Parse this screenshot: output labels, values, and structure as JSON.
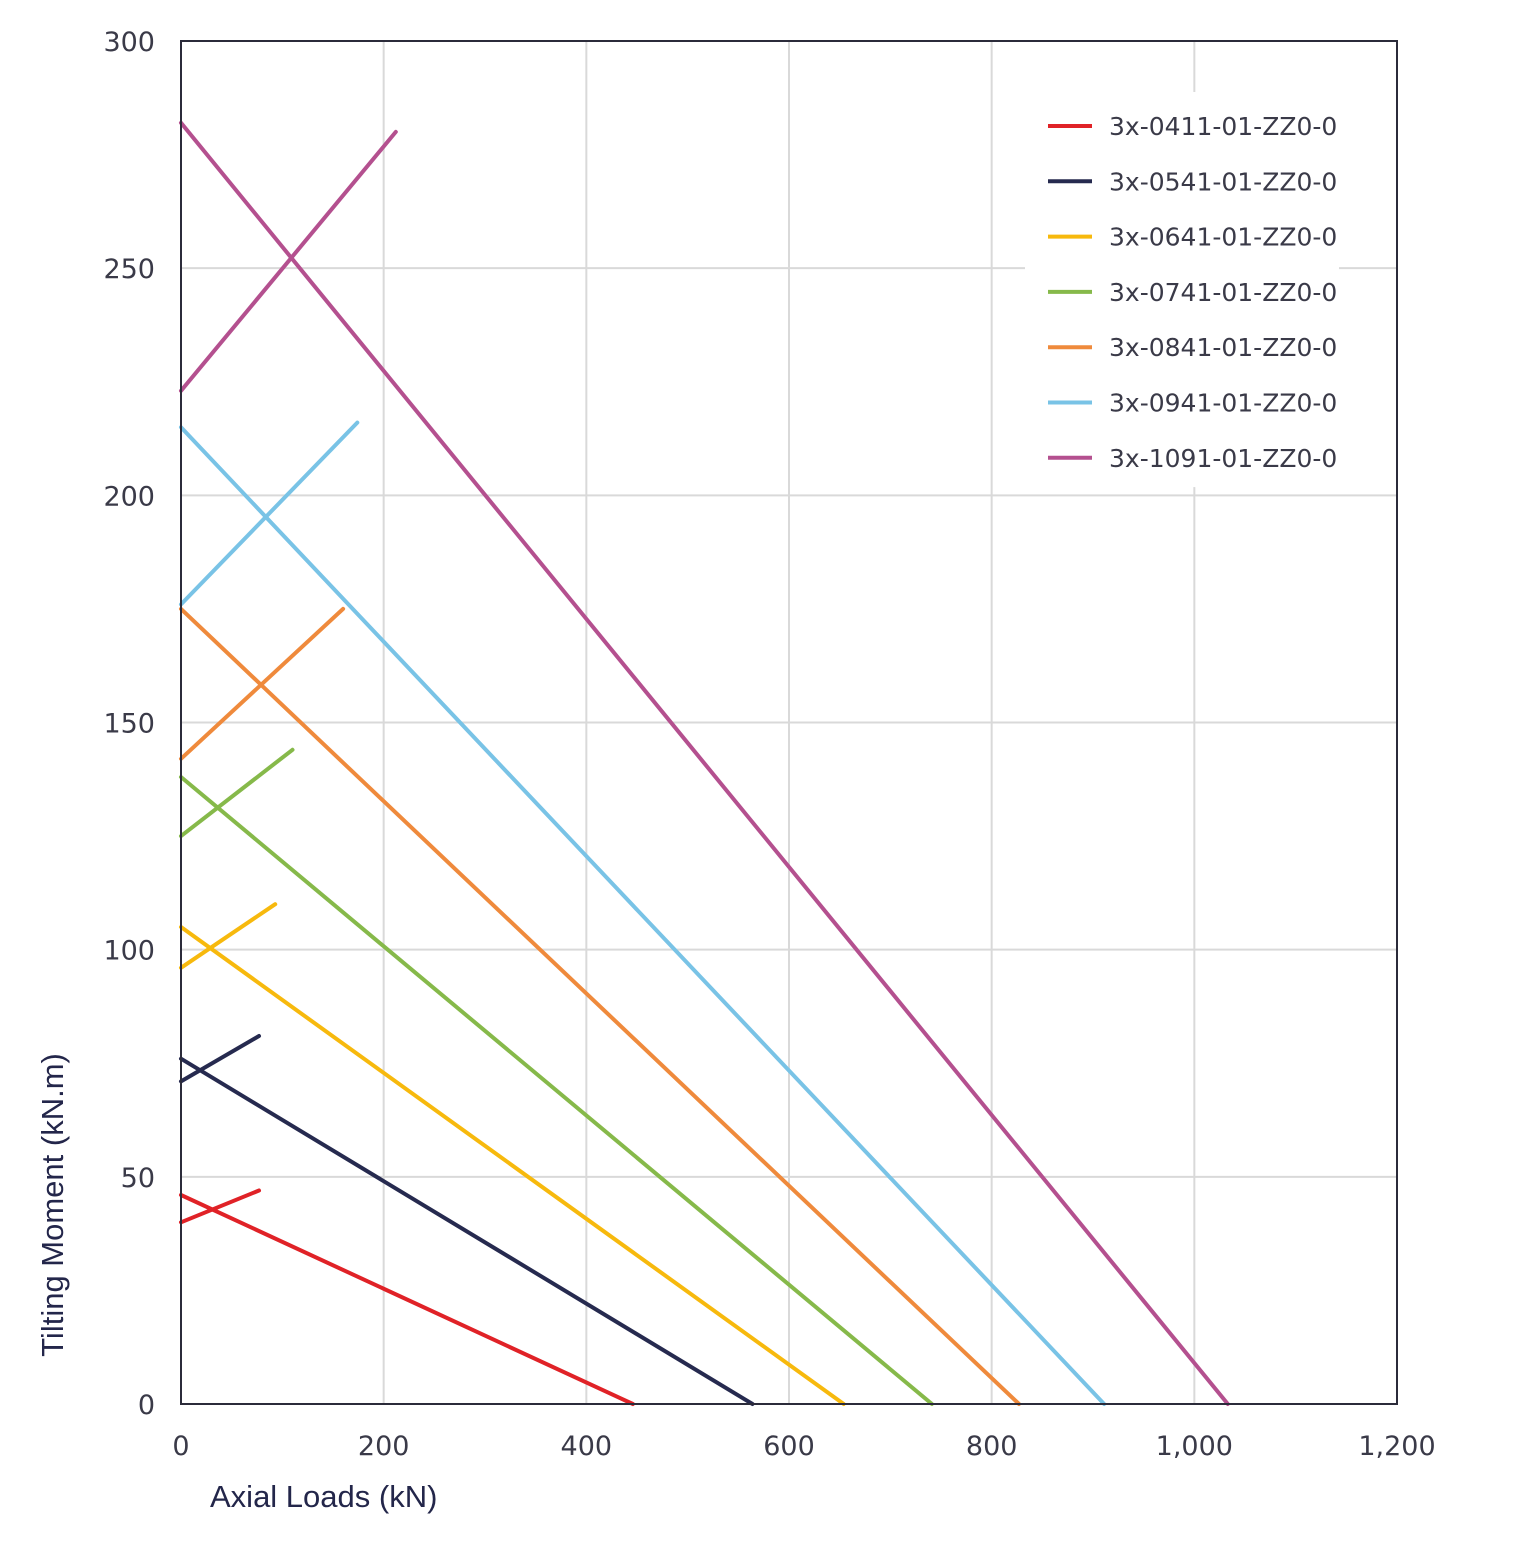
{
  "chart_data": {
    "type": "line",
    "title": "",
    "xlabel": "Axial Loads (kN)",
    "ylabel": "Tilting Moment (kN.m)",
    "xlim": [
      0,
      1200
    ],
    "ylim": [
      0,
      300
    ],
    "x_ticks": [
      0,
      200,
      400,
      600,
      800,
      1000,
      1200
    ],
    "x_tick_labels": [
      "0",
      "200",
      "400",
      "600",
      "800",
      "1,000",
      "1,200"
    ],
    "y_ticks": [
      0,
      50,
      100,
      150,
      200,
      250,
      300
    ],
    "y_tick_labels": [
      "0",
      "50",
      "100",
      "150",
      "200",
      "250",
      "300"
    ],
    "grid": true,
    "legend_position": "top-right",
    "series": [
      {
        "name": "3x-0411-01-ZZ0-0",
        "color": "#e02227",
        "segments": [
          [
            [
              0,
              46
            ],
            [
              446,
              0
            ]
          ],
          [
            [
              0,
              40
            ],
            [
              77,
              47
            ]
          ]
        ]
      },
      {
        "name": "3x-0541-01-ZZ0-0",
        "color": "#262a4f",
        "segments": [
          [
            [
              0,
              76
            ],
            [
              564,
              0
            ]
          ],
          [
            [
              0,
              71
            ],
            [
              77,
              81
            ]
          ]
        ]
      },
      {
        "name": "3x-0641-01-ZZ0-0",
        "color": "#f7b90d",
        "segments": [
          [
            [
              0,
              105
            ],
            [
              654,
              0
            ]
          ],
          [
            [
              0,
              96
            ],
            [
              93,
              110
            ]
          ]
        ]
      },
      {
        "name": "3x-0741-01-ZZ0-0",
        "color": "#86b94a",
        "segments": [
          [
            [
              0,
              138
            ],
            [
              741,
              0
            ]
          ],
          [
            [
              0,
              125
            ],
            [
              110,
              144
            ]
          ]
        ]
      },
      {
        "name": "3x-0841-01-ZZ0-0",
        "color": "#ef8a3c",
        "segments": [
          [
            [
              0,
              175
            ],
            [
              827,
              0
            ]
          ],
          [
            [
              0,
              142
            ],
            [
              160,
              175
            ]
          ]
        ]
      },
      {
        "name": "3x-0941-01-ZZ0-0",
        "color": "#79c3e6",
        "segments": [
          [
            [
              0,
              215
            ],
            [
              911,
              0
            ]
          ],
          [
            [
              0,
              176
            ],
            [
              174,
              216
            ]
          ]
        ]
      },
      {
        "name": "3x-1091-01-ZZ0-0",
        "color": "#b4508f",
        "segments": [
          [
            [
              0,
              282
            ],
            [
              1033,
              0
            ]
          ],
          [
            [
              0,
              223
            ],
            [
              212,
              280
            ]
          ]
        ]
      }
    ]
  },
  "colors": {
    "grid": "#d9d9d9",
    "frame": "#2b2b3a",
    "tick_text": "#3a3a48",
    "axis_title": "#23264a"
  }
}
